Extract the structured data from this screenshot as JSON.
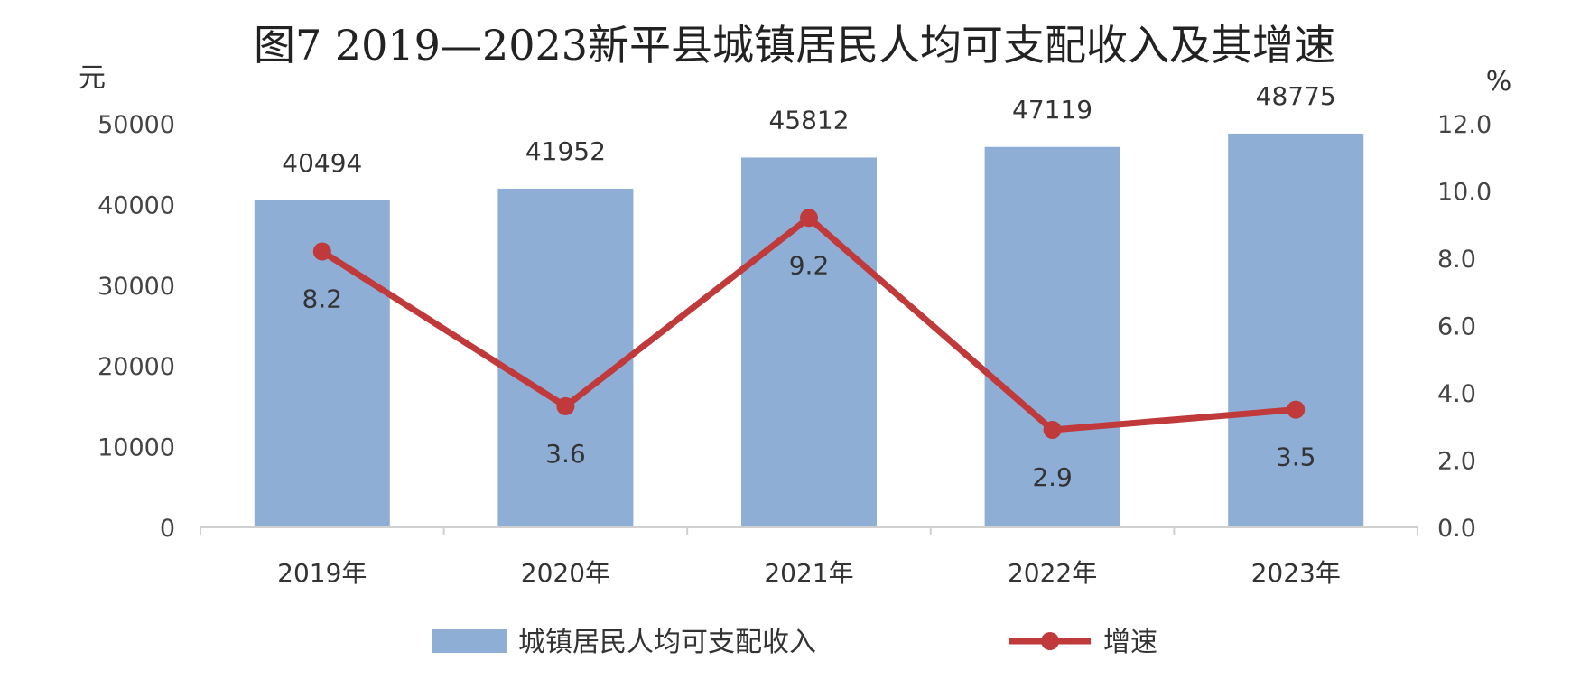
{
  "chart_data": {
    "type": "bar",
    "title": "图7 2019—2023新平县城镇居民人均可支配收入及其增速",
    "left_axis_unit": "元",
    "right_axis_unit": "%",
    "categories": [
      "2019年",
      "2020年",
      "2021年",
      "2022年",
      "2023年"
    ],
    "y_left_range": [
      0,
      50000
    ],
    "y_left_ticks": [
      "0",
      "10000",
      "20000",
      "30000",
      "40000",
      "50000"
    ],
    "y_right_range": [
      0,
      12
    ],
    "y_right_ticks": [
      "0.0",
      "2.0",
      "4.0",
      "6.0",
      "8.0",
      "10.0",
      "12.0"
    ],
    "grid": false,
    "legend_position": "bottom",
    "series": [
      {
        "name": "城镇居民人均可支配收入",
        "type": "bar",
        "axis": "left",
        "color": "#8eaed6",
        "values": [
          40494,
          41952,
          45812,
          47119,
          48775
        ],
        "labels": [
          "40494",
          "41952",
          "45812",
          "47119",
          "48775"
        ]
      },
      {
        "name": "增速",
        "type": "line",
        "axis": "right",
        "color": "#c0393b",
        "values": [
          8.2,
          3.6,
          9.2,
          2.9,
          3.5
        ],
        "labels": [
          "8.2",
          "3.6",
          "9.2",
          "2.9",
          "3.5"
        ]
      }
    ]
  }
}
